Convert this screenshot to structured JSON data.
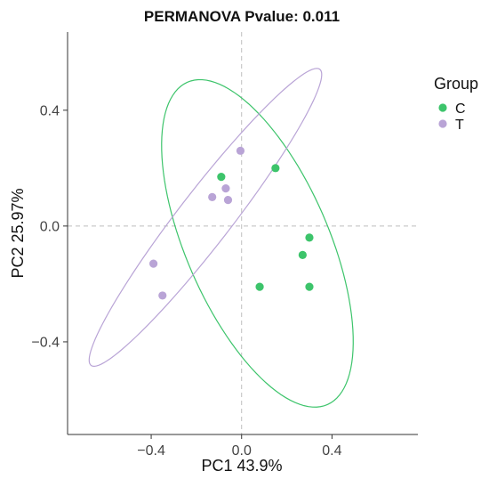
{
  "chart_data": {
    "type": "scatter",
    "title": "PERMANOVA Pvalue: 0.011",
    "xlabel": "PC1 43.9%",
    "ylabel": "PC2 25.97%",
    "xlim": [
      -0.77,
      0.78
    ],
    "ylim": [
      -0.72,
      0.67
    ],
    "xticks": [
      -0.4,
      0.0,
      0.4
    ],
    "xtick_labels": [
      "−0.4",
      "0.0",
      "0.4"
    ],
    "yticks": [
      -0.4,
      0.0,
      0.4
    ],
    "ytick_labels": [
      "−0.4",
      "0.0",
      "0.4"
    ],
    "reference_lines": {
      "x": 0.0,
      "y": 0.0,
      "style": "dashed"
    },
    "grid": false,
    "legend": {
      "title": "Group",
      "placement": "right"
    },
    "series": [
      {
        "name": "C",
        "color": "#3dc46b",
        "points": [
          {
            "x": -0.09,
            "y": 0.17
          },
          {
            "x": 0.15,
            "y": 0.2
          },
          {
            "x": 0.3,
            "y": -0.04
          },
          {
            "x": 0.27,
            "y": -0.1
          },
          {
            "x": 0.08,
            "y": -0.21
          },
          {
            "x": 0.3,
            "y": -0.21
          }
        ],
        "ellipse": {
          "cx": 0.07,
          "cy": -0.06,
          "rx": 0.64,
          "ry": 0.3,
          "angle_deg": -58
        }
      },
      {
        "name": "T",
        "color": "#b9a4d6",
        "points": [
          {
            "x": -0.005,
            "y": 0.26
          },
          {
            "x": -0.07,
            "y": 0.13
          },
          {
            "x": -0.13,
            "y": 0.1
          },
          {
            "x": -0.06,
            "y": 0.09
          },
          {
            "x": -0.39,
            "y": -0.13
          },
          {
            "x": -0.35,
            "y": -0.24
          }
        ],
        "ellipse": {
          "cx": -0.16,
          "cy": 0.03,
          "rx": 0.72,
          "ry": 0.105,
          "angle_deg": 45
        }
      }
    ]
  }
}
